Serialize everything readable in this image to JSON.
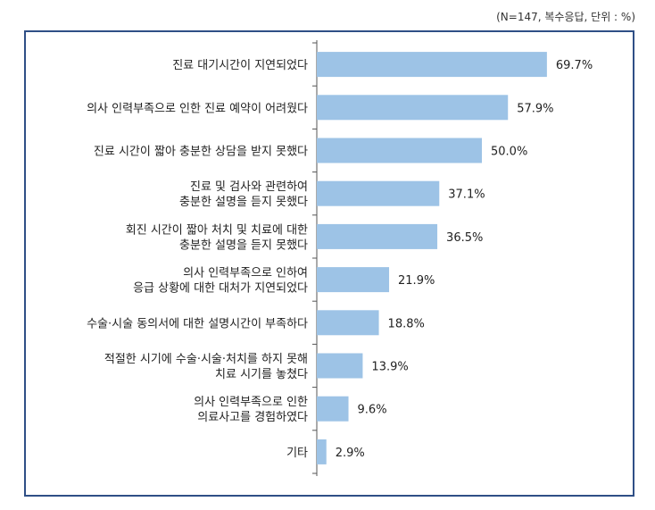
{
  "header": {
    "note": "(N=147, 복수응답, 단위 : %)"
  },
  "colors": {
    "bar": "#9dc3e6",
    "axis": "#555555",
    "frame": "#2f4f86"
  },
  "chart_data": {
    "type": "bar",
    "orientation": "horizontal",
    "categories": [
      [
        "진료 대기시간이 지연되었다"
      ],
      [
        "의사 인력부족으로 인한 진료 예약이 어려웠다"
      ],
      [
        "진료 시간이 짧아 충분한 상담을 받지 못했다"
      ],
      [
        "진료 및 검사와 관련하여",
        "충분한 설명을 듣지 못했다"
      ],
      [
        "회진 시간이 짧아 처치 및 치료에 대한",
        "충분한 설명을 듣지 못했다"
      ],
      [
        "의사 인력부족으로 인하여",
        "응급 상황에 대한 대처가 지연되었다"
      ],
      [
        "수술·시술 동의서에 대한 설명시간이 부족하다"
      ],
      [
        "적절한 시기에 수술·시술·처치를 하지 못해",
        "치료 시기를 놓쳤다"
      ],
      [
        "의사 인력부족으로 인한",
        "의료사고를 경험하였다"
      ],
      [
        "기타"
      ]
    ],
    "values": [
      69.7,
      57.9,
      50.0,
      37.1,
      36.5,
      21.9,
      18.8,
      13.9,
      9.6,
      2.9
    ],
    "value_labels": [
      "69.7%",
      "57.9%",
      "50.0%",
      "37.1%",
      "36.5%",
      "21.9%",
      "18.8%",
      "13.9%",
      "9.6%",
      "2.9%"
    ],
    "xlim": [
      0,
      100
    ],
    "title": "",
    "xlabel": "",
    "ylabel": "",
    "grid": false,
    "legend": "none"
  }
}
